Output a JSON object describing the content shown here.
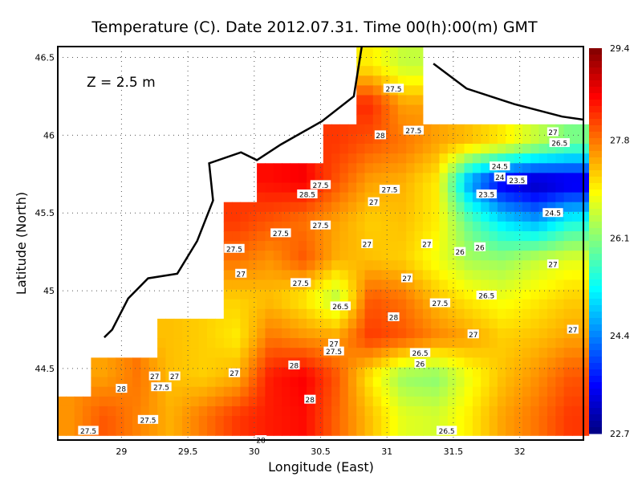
{
  "chart_data": {
    "type": "heatmap",
    "title": "Temperature (C). Date 2012.07.31. Time 00(h):00(m) GMT",
    "annotation": "Z = 2.5 m",
    "xlabel": "Longitude (East)",
    "ylabel": "Latitude (North)",
    "xlim": [
      28.52,
      32.48
    ],
    "ylim": [
      44.04,
      46.57
    ],
    "xticks": [
      "29",
      "29.5",
      "30",
      "30.5",
      "31",
      "31.5",
      "32"
    ],
    "yticks": [
      "44.5",
      "45",
      "45.5",
      "46",
      "46.5"
    ],
    "grid": true,
    "colorbar": {
      "min": 22.7,
      "max": 29.4,
      "ticks": [
        "22.7",
        "24.4",
        "26.1",
        "27.8",
        "29.4"
      ],
      "colormap": "jet"
    },
    "grid_lons": [
      28.625,
      28.875,
      29.125,
      29.375,
      29.625,
      29.875,
      30.125,
      30.375,
      30.625,
      30.875,
      31.125,
      31.375,
      31.625,
      31.875,
      32.125,
      32.375
    ],
    "grid_lats": [
      46.45,
      46.2,
      45.95,
      45.7,
      45.45,
      45.2,
      44.95,
      44.7,
      44.45,
      44.2
    ],
    "values": [
      [
        null,
        null,
        null,
        null,
        null,
        null,
        null,
        null,
        null,
        27.0,
        26.5,
        null,
        null,
        null,
        null,
        null
      ],
      [
        null,
        null,
        null,
        null,
        null,
        null,
        null,
        null,
        null,
        28.3,
        27.5,
        null,
        null,
        null,
        null,
        null
      ],
      [
        null,
        null,
        null,
        null,
        null,
        null,
        null,
        null,
        28.2,
        28.0,
        27.8,
        27.5,
        27.3,
        27.0,
        26.5,
        26.0
      ],
      [
        null,
        null,
        null,
        null,
        null,
        null,
        28.5,
        28.6,
        28.0,
        27.5,
        27.4,
        27.0,
        24.5,
        23.3,
        23.0,
        23.2
      ],
      [
        null,
        null,
        null,
        null,
        null,
        28.2,
        28.0,
        27.8,
        27.5,
        27.2,
        27.3,
        27.0,
        25.8,
        25.0,
        24.6,
        25.3
      ],
      [
        null,
        null,
        null,
        null,
        null,
        27.8,
        27.6,
        28.0,
        27.4,
        27.3,
        27.2,
        26.8,
        26.3,
        26.2,
        26.5,
        26.7
      ],
      [
        null,
        null,
        null,
        null,
        null,
        27.2,
        27.3,
        27.0,
        26.4,
        28.0,
        27.8,
        27.3,
        27.0,
        26.8,
        27.0,
        27.2
      ],
      [
        null,
        null,
        null,
        27.3,
        27.2,
        27.0,
        27.8,
        27.6,
        27.5,
        28.2,
        28.0,
        27.7,
        27.5,
        27.2,
        27.3,
        27.5
      ],
      [
        null,
        27.5,
        27.8,
        27.3,
        27.2,
        27.4,
        28.4,
        28.6,
        28.0,
        27.0,
        26.2,
        26.1,
        26.8,
        27.3,
        27.6,
        28.0
      ],
      [
        27.6,
        28.0,
        27.7,
        27.4,
        27.8,
        28.2,
        28.4,
        28.5,
        27.9,
        27.3,
        26.7,
        26.6,
        27.0,
        27.5,
        27.8,
        28.2
      ]
    ],
    "contour_labels": [
      {
        "lon": 31.05,
        "lat": 46.3,
        "text": "27.5"
      },
      {
        "lon": 30.95,
        "lat": 46.0,
        "text": "28"
      },
      {
        "lon": 31.2,
        "lat": 46.03,
        "text": "27.5"
      },
      {
        "lon": 32.25,
        "lat": 46.02,
        "text": "27"
      },
      {
        "lon": 32.3,
        "lat": 45.95,
        "text": "26.5"
      },
      {
        "lon": 31.85,
        "lat": 45.8,
        "text": "24.5"
      },
      {
        "lon": 31.85,
        "lat": 45.73,
        "text": "24"
      },
      {
        "lon": 31.98,
        "lat": 45.71,
        "text": "23.5"
      },
      {
        "lon": 31.75,
        "lat": 45.62,
        "text": "23.5"
      },
      {
        "lon": 32.25,
        "lat": 45.5,
        "text": "24.5"
      },
      {
        "lon": 31.7,
        "lat": 45.28,
        "text": "26"
      },
      {
        "lon": 32.25,
        "lat": 45.17,
        "text": "27"
      },
      {
        "lon": 31.75,
        "lat": 44.97,
        "text": "26.5"
      },
      {
        "lon": 31.4,
        "lat": 44.92,
        "text": "27.5"
      },
      {
        "lon": 31.15,
        "lat": 45.08,
        "text": "27"
      },
      {
        "lon": 30.5,
        "lat": 45.68,
        "text": "27.5"
      },
      {
        "lon": 31.02,
        "lat": 45.65,
        "text": "27.5"
      },
      {
        "lon": 30.9,
        "lat": 45.57,
        "text": "27"
      },
      {
        "lon": 30.4,
        "lat": 45.62,
        "text": "28.5"
      },
      {
        "lon": 29.85,
        "lat": 45.27,
        "text": "27.5"
      },
      {
        "lon": 30.2,
        "lat": 45.37,
        "text": "27.5"
      },
      {
        "lon": 30.5,
        "lat": 45.42,
        "text": "27.5"
      },
      {
        "lon": 29.9,
        "lat": 45.11,
        "text": "27"
      },
      {
        "lon": 30.35,
        "lat": 45.05,
        "text": "27.5"
      },
      {
        "lon": 30.65,
        "lat": 44.9,
        "text": "26.5"
      },
      {
        "lon": 31.05,
        "lat": 44.83,
        "text": "28"
      },
      {
        "lon": 30.6,
        "lat": 44.66,
        "text": "27"
      },
      {
        "lon": 30.6,
        "lat": 44.61,
        "text": "27.5"
      },
      {
        "lon": 30.3,
        "lat": 44.52,
        "text": "28"
      },
      {
        "lon": 29.85,
        "lat": 44.47,
        "text": "27"
      },
      {
        "lon": 31.25,
        "lat": 44.6,
        "text": "26.5"
      },
      {
        "lon": 31.25,
        "lat": 44.53,
        "text": "26"
      },
      {
        "lon": 30.42,
        "lat": 44.3,
        "text": "28"
      },
      {
        "lon": 31.45,
        "lat": 44.1,
        "text": "26.5"
      },
      {
        "lon": 31.65,
        "lat": 44.72,
        "text": "27"
      },
      {
        "lon": 29.3,
        "lat": 44.38,
        "text": "27.5"
      },
      {
        "lon": 29.25,
        "lat": 44.45,
        "text": "27"
      },
      {
        "lon": 29.4,
        "lat": 44.45,
        "text": "27"
      },
      {
        "lon": 29.0,
        "lat": 44.37,
        "text": "28"
      },
      {
        "lon": 29.2,
        "lat": 44.17,
        "text": "27.5"
      },
      {
        "lon": 28.75,
        "lat": 44.1,
        "text": "27.5"
      },
      {
        "lon": 30.05,
        "lat": 44.04,
        "text": "28"
      },
      {
        "lon": 31.3,
        "lat": 45.3,
        "text": "27"
      },
      {
        "lon": 30.85,
        "lat": 45.3,
        "text": "27"
      },
      {
        "lon": 31.55,
        "lat": 45.25,
        "text": "26"
      },
      {
        "lon": 32.4,
        "lat": 44.75,
        "text": "27"
      }
    ],
    "coastlines": [
      [
        [
          30.81,
          46.57
        ],
        [
          30.75,
          46.25
        ],
        [
          30.51,
          46.09
        ],
        [
          30.2,
          45.94
        ],
        [
          30.02,
          45.84
        ],
        [
          29.9,
          45.89
        ],
        [
          29.66,
          45.82
        ],
        [
          29.69,
          45.58
        ],
        [
          29.57,
          45.32
        ],
        [
          29.42,
          45.11
        ],
        [
          29.2,
          45.08
        ],
        [
          29.05,
          44.95
        ],
        [
          28.93,
          44.75
        ],
        [
          28.87,
          44.7
        ]
      ],
      [
        [
          31.35,
          46.46
        ],
        [
          31.6,
          46.3
        ],
        [
          31.96,
          46.2
        ],
        [
          32.32,
          46.12
        ],
        [
          32.48,
          46.1
        ]
      ]
    ]
  }
}
